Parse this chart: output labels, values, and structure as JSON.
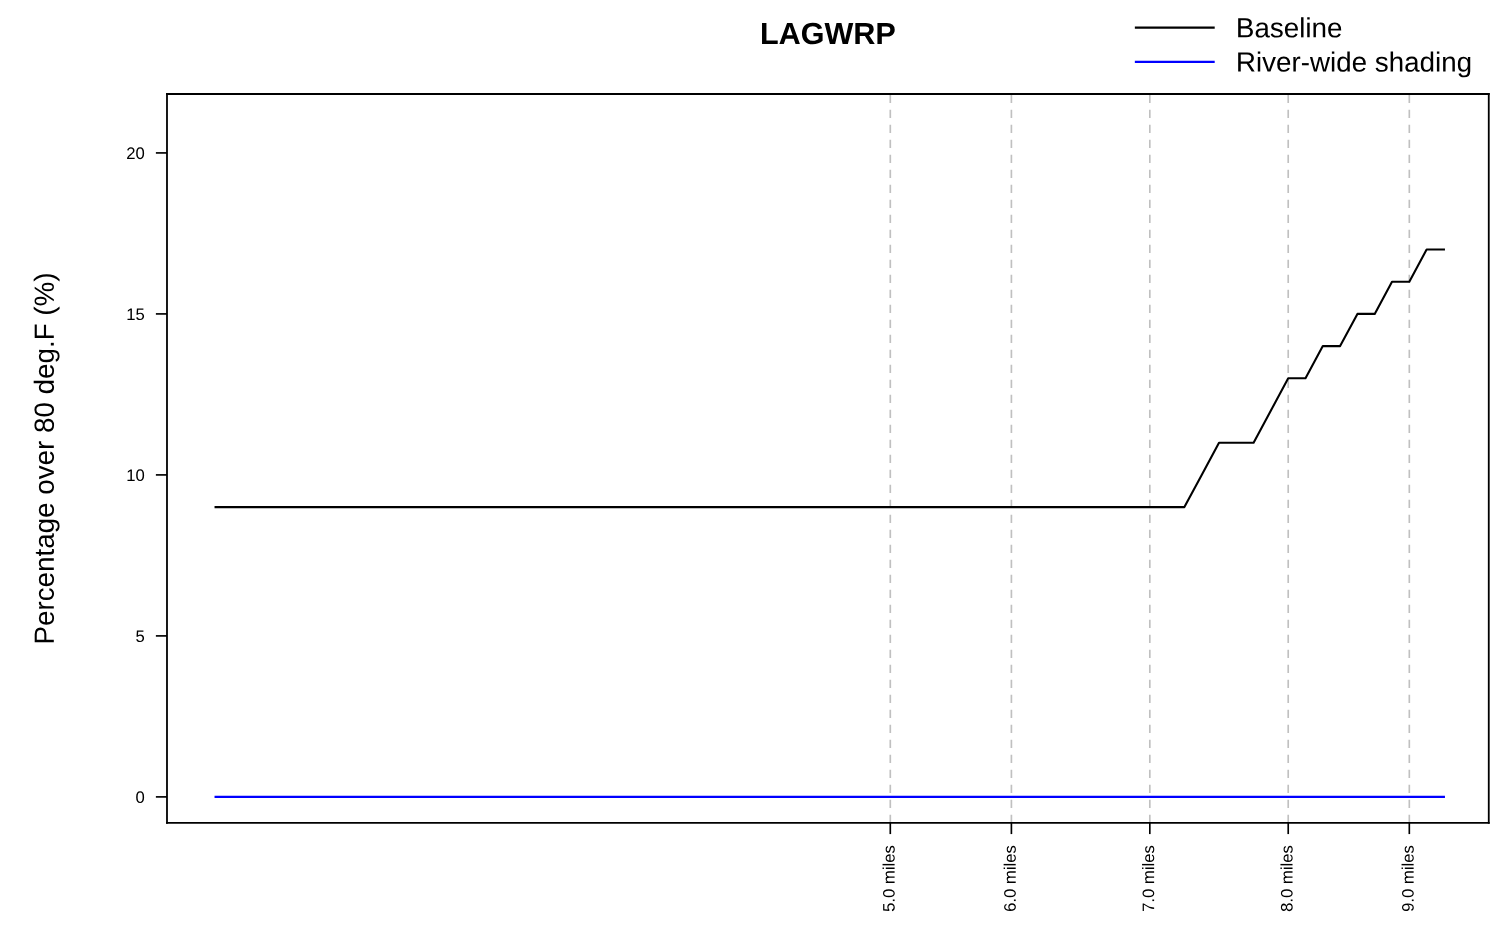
{
  "chart_data": {
    "type": "line",
    "title": "LAGWRP",
    "ylabel": "Percentage over 80 deg.F (%)",
    "categories": [
      null,
      null,
      null,
      null,
      null,
      null,
      null,
      null,
      null,
      null,
      null,
      null,
      null,
      null,
      null,
      null,
      null,
      null,
      null,
      null,
      null,
      null,
      null,
      null,
      null,
      null,
      null,
      null,
      null,
      null,
      null,
      null,
      null,
      null,
      null,
      null,
      null,
      null,
      null,
      "5.0 miles",
      null,
      null,
      null,
      null,
      null,
      null,
      "6.0 miles",
      null,
      null,
      null,
      null,
      null,
      null,
      null,
      "7.0 miles",
      null,
      null,
      null,
      null,
      null,
      null,
      null,
      "8.0 miles",
      null,
      null,
      null,
      null,
      null,
      null,
      "9.0 miles",
      null,
      null
    ],
    "series": [
      {
        "name": "Baseline",
        "color": "#000000",
        "values": [
          9,
          9,
          9,
          9,
          9,
          9,
          9,
          9,
          9,
          9,
          9,
          9,
          9,
          9,
          9,
          9,
          9,
          9,
          9,
          9,
          9,
          9,
          9,
          9,
          9,
          9,
          9,
          9,
          9,
          9,
          9,
          9,
          9,
          9,
          9,
          9,
          9,
          9,
          9,
          9,
          9,
          9,
          9,
          9,
          9,
          9,
          9,
          9,
          9,
          9,
          9,
          9,
          9,
          9,
          9,
          9,
          9,
          10,
          11,
          11,
          11,
          12,
          13,
          13,
          14,
          14,
          15,
          15,
          16,
          16,
          17,
          17
        ]
      },
      {
        "name": "River-wide shading",
        "color": "#0000ff",
        "values": [
          0,
          0,
          0,
          0,
          0,
          0,
          0,
          0,
          0,
          0,
          0,
          0,
          0,
          0,
          0,
          0,
          0,
          0,
          0,
          0,
          0,
          0,
          0,
          0,
          0,
          0,
          0,
          0,
          0,
          0,
          0,
          0,
          0,
          0,
          0,
          0,
          0,
          0,
          0,
          0,
          0,
          0,
          0,
          0,
          0,
          0,
          0,
          0,
          0,
          0,
          0,
          0,
          0,
          0,
          0,
          0,
          0,
          0,
          0,
          0,
          0,
          0,
          0,
          0,
          0,
          0,
          0,
          0,
          0,
          0,
          0,
          0
        ]
      }
    ],
    "ylim": [
      -0.81,
      21.83
    ],
    "yticks": [
      0,
      5,
      10,
      15,
      20
    ],
    "grid": "x",
    "legend": "top right",
    "line_style": "solid",
    "marker": "none"
  }
}
